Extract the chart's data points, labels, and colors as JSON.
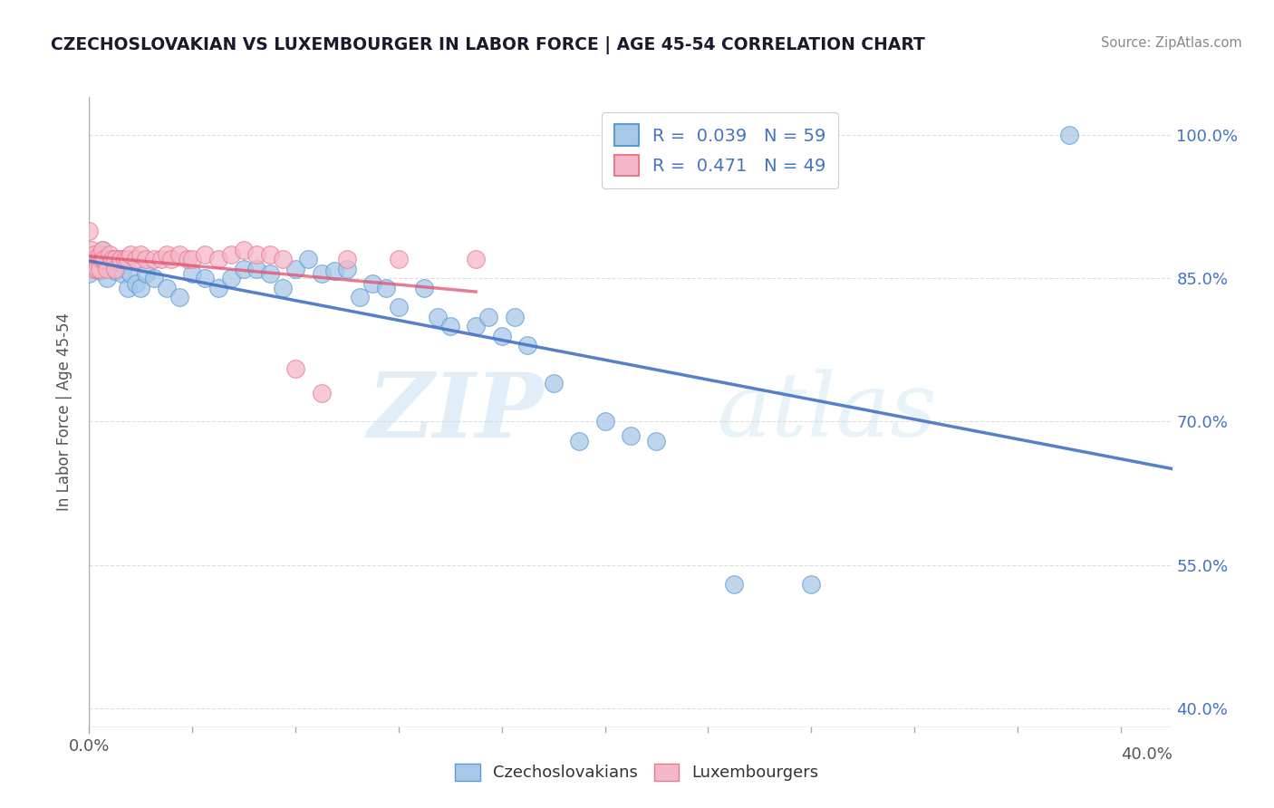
{
  "title": "CZECHOSLOVAKIAN VS LUXEMBOURGER IN LABOR FORCE | AGE 45-54 CORRELATION CHART",
  "source": "Source: ZipAtlas.com",
  "ylabel": "In Labor Force | Age 45-54",
  "watermark_zip": "ZIP",
  "watermark_atlas": "atlas",
  "xlim": [
    0.0,
    0.42
  ],
  "ylim": [
    0.38,
    1.04
  ],
  "xtick_positions": [
    0.0,
    0.4
  ],
  "xtick_labels": [
    "0.0%",
    "40.0%"
  ],
  "ytick_positions": [
    0.4,
    0.55,
    0.7,
    0.85,
    1.0
  ],
  "ytick_labels": [
    "40.0%",
    "55.0%",
    "70.0%",
    "85.0%",
    "100.0%"
  ],
  "blue_color": "#a8c8e8",
  "pink_color": "#f4b8c8",
  "blue_edge_color": "#5b9bd5",
  "pink_edge_color": "#e87a90",
  "blue_line_color": "#4472c4",
  "pink_line_color": "#e05070",
  "legend_r1": "R =  0.039   N = 59",
  "legend_r2": "R =  0.471   N = 49",
  "blue_scatter": [
    [
      0.0,
      0.87
    ],
    [
      0.0,
      0.855
    ],
    [
      0.002,
      0.87
    ],
    [
      0.003,
      0.87
    ],
    [
      0.003,
      0.86
    ],
    [
      0.004,
      0.858
    ],
    [
      0.004,
      0.87
    ],
    [
      0.005,
      0.868
    ],
    [
      0.005,
      0.88
    ],
    [
      0.006,
      0.862
    ],
    [
      0.007,
      0.85
    ],
    [
      0.008,
      0.865
    ],
    [
      0.009,
      0.87
    ],
    [
      0.01,
      0.87
    ],
    [
      0.01,
      0.858
    ],
    [
      0.012,
      0.87
    ],
    [
      0.013,
      0.855
    ],
    [
      0.014,
      0.87
    ],
    [
      0.015,
      0.84
    ],
    [
      0.016,
      0.855
    ],
    [
      0.018,
      0.845
    ],
    [
      0.02,
      0.84
    ],
    [
      0.022,
      0.855
    ],
    [
      0.025,
      0.85
    ],
    [
      0.03,
      0.84
    ],
    [
      0.035,
      0.83
    ],
    [
      0.04,
      0.855
    ],
    [
      0.045,
      0.85
    ],
    [
      0.05,
      0.84
    ],
    [
      0.055,
      0.85
    ],
    [
      0.06,
      0.86
    ],
    [
      0.065,
      0.86
    ],
    [
      0.07,
      0.855
    ],
    [
      0.075,
      0.84
    ],
    [
      0.08,
      0.86
    ],
    [
      0.085,
      0.87
    ],
    [
      0.09,
      0.855
    ],
    [
      0.095,
      0.858
    ],
    [
      0.1,
      0.86
    ],
    [
      0.105,
      0.83
    ],
    [
      0.11,
      0.845
    ],
    [
      0.115,
      0.84
    ],
    [
      0.12,
      0.82
    ],
    [
      0.13,
      0.84
    ],
    [
      0.135,
      0.81
    ],
    [
      0.14,
      0.8
    ],
    [
      0.15,
      0.8
    ],
    [
      0.155,
      0.81
    ],
    [
      0.16,
      0.79
    ],
    [
      0.165,
      0.81
    ],
    [
      0.17,
      0.78
    ],
    [
      0.18,
      0.74
    ],
    [
      0.19,
      0.68
    ],
    [
      0.2,
      0.7
    ],
    [
      0.21,
      0.685
    ],
    [
      0.22,
      0.68
    ],
    [
      0.25,
      0.53
    ],
    [
      0.28,
      0.53
    ],
    [
      0.38,
      1.0
    ]
  ],
  "pink_scatter": [
    [
      0.0,
      0.87
    ],
    [
      0.0,
      0.9
    ],
    [
      0.0,
      0.87
    ],
    [
      0.001,
      0.88
    ],
    [
      0.001,
      0.87
    ],
    [
      0.002,
      0.87
    ],
    [
      0.002,
      0.875
    ],
    [
      0.002,
      0.86
    ],
    [
      0.003,
      0.87
    ],
    [
      0.003,
      0.86
    ],
    [
      0.004,
      0.87
    ],
    [
      0.004,
      0.875
    ],
    [
      0.004,
      0.86
    ],
    [
      0.005,
      0.87
    ],
    [
      0.005,
      0.87
    ],
    [
      0.005,
      0.88
    ],
    [
      0.006,
      0.87
    ],
    [
      0.007,
      0.86
    ],
    [
      0.008,
      0.875
    ],
    [
      0.009,
      0.87
    ],
    [
      0.01,
      0.87
    ],
    [
      0.01,
      0.86
    ],
    [
      0.012,
      0.87
    ],
    [
      0.012,
      0.87
    ],
    [
      0.014,
      0.87
    ],
    [
      0.015,
      0.87
    ],
    [
      0.016,
      0.875
    ],
    [
      0.018,
      0.87
    ],
    [
      0.02,
      0.875
    ],
    [
      0.022,
      0.87
    ],
    [
      0.025,
      0.87
    ],
    [
      0.028,
      0.87
    ],
    [
      0.03,
      0.875
    ],
    [
      0.032,
      0.87
    ],
    [
      0.035,
      0.875
    ],
    [
      0.038,
      0.87
    ],
    [
      0.04,
      0.87
    ],
    [
      0.045,
      0.875
    ],
    [
      0.05,
      0.87
    ],
    [
      0.055,
      0.875
    ],
    [
      0.06,
      0.88
    ],
    [
      0.065,
      0.875
    ],
    [
      0.07,
      0.875
    ],
    [
      0.075,
      0.87
    ],
    [
      0.08,
      0.755
    ],
    [
      0.09,
      0.73
    ],
    [
      0.1,
      0.87
    ],
    [
      0.12,
      0.87
    ],
    [
      0.15,
      0.87
    ]
  ],
  "background_color": "#ffffff",
  "grid_color": "#dddddd"
}
